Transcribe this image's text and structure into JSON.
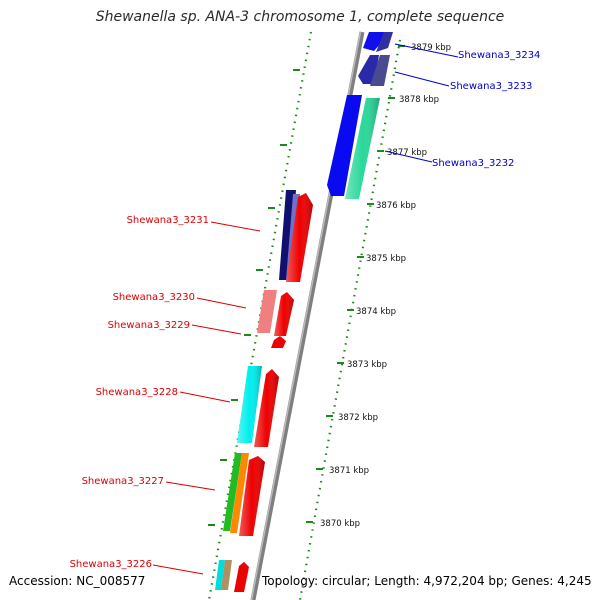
{
  "title": "Shewanella sp. ANA-3 chromosome 1, complete sequence",
  "footer": {
    "accession": "Accession: NC_008577",
    "topology": "Topology: circular; Length: 4,972,204 bp; Genes: 4,245"
  },
  "colors": {
    "backbone": "#7f7f7f",
    "ring_dots": "#1a8a1a",
    "forward_label": "#0000cc",
    "reverse_label": "#dd0000"
  },
  "kbp_ticks": [
    {
      "label": "3879 kbp"
    },
    {
      "label": "3878 kbp"
    },
    {
      "label": "3877 kbp"
    },
    {
      "label": "3876 kbp"
    },
    {
      "label": "3875 kbp"
    },
    {
      "label": "3874 kbp"
    },
    {
      "label": "3873 kbp"
    },
    {
      "label": "3872 kbp"
    },
    {
      "label": "3871 kbp"
    },
    {
      "label": "3870 kbp"
    }
  ],
  "gene_labels": [
    {
      "name": "Shewana3_3234",
      "strand": "forward"
    },
    {
      "name": "Shewana3_3233",
      "strand": "forward"
    },
    {
      "name": "Shewana3_3232",
      "strand": "forward"
    },
    {
      "name": "Shewana3_3231",
      "strand": "reverse"
    },
    {
      "name": "Shewana3_3230",
      "strand": "reverse"
    },
    {
      "name": "Shewana3_3229",
      "strand": "reverse"
    },
    {
      "name": "Shewana3_3228",
      "strand": "reverse"
    },
    {
      "name": "Shewana3_3227",
      "strand": "reverse"
    },
    {
      "name": "Shewana3_3226",
      "strand": "reverse"
    }
  ]
}
